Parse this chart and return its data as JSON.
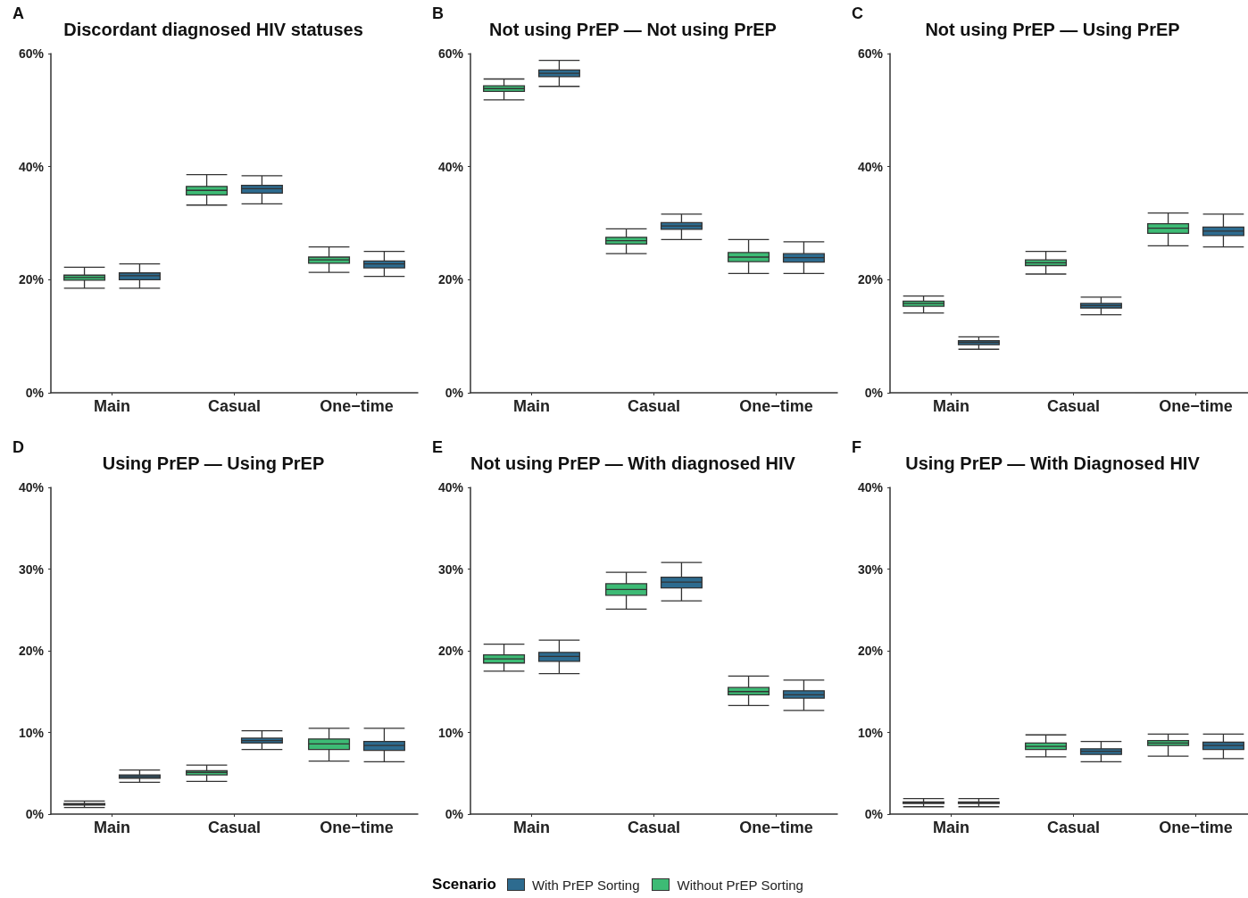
{
  "chart_data": [
    {
      "type": "box",
      "title": "Discordant diagnosed HIV statuses",
      "annotations": [
        "A"
      ],
      "categories": [
        "Main",
        "Casual",
        "One−time"
      ],
      "ylim": [
        0,
        60
      ],
      "yticks": [
        {
          "value": 0,
          "label": "0%"
        },
        {
          "value": 20,
          "label": "20%"
        },
        {
          "value": 40,
          "label": "40%"
        },
        {
          "value": 60,
          "label": "60%"
        }
      ],
      "grid": false,
      "legend": "bottom",
      "legend_title": "Scenario",
      "series": [
        {
          "name": "Without PrEP Sorting",
          "color": "#3dbb75",
          "boxes": [
            {
              "low": 18.5,
              "q1": 19.9,
              "median": 20.4,
              "q3": 20.8,
              "high": 22.2
            },
            {
              "low": 33.2,
              "q1": 35.0,
              "median": 35.8,
              "q3": 36.5,
              "high": 38.6
            },
            {
              "low": 21.3,
              "q1": 22.9,
              "median": 23.5,
              "q3": 24.0,
              "high": 25.8
            }
          ]
        },
        {
          "name": "With PrEP Sorting",
          "color": "#2d6b8f",
          "boxes": [
            {
              "low": 18.5,
              "q1": 20.0,
              "median": 20.7,
              "q3": 21.2,
              "high": 22.8
            },
            {
              "low": 33.4,
              "q1": 35.3,
              "median": 36.1,
              "q3": 36.7,
              "high": 38.4
            },
            {
              "low": 20.6,
              "q1": 22.1,
              "median": 22.8,
              "q3": 23.3,
              "high": 25.0
            }
          ]
        }
      ]
    },
    {
      "type": "box",
      "title": "Not using PrEP — Not using PrEP",
      "annotations": [
        "B"
      ],
      "categories": [
        "Main",
        "Casual",
        "One−time"
      ],
      "ylim": [
        0,
        60
      ],
      "yticks": [
        {
          "value": 0,
          "label": "0%"
        },
        {
          "value": 20,
          "label": "20%"
        },
        {
          "value": 40,
          "label": "40%"
        },
        {
          "value": 60,
          "label": "60%"
        }
      ],
      "grid": false,
      "series": [
        {
          "color": "#3dbb75",
          "boxes": [
            {
              "low": 51.8,
              "q1": 53.3,
              "median": 53.8,
              "q3": 54.3,
              "high": 55.5
            },
            {
              "low": 24.6,
              "q1": 26.3,
              "median": 26.9,
              "q3": 27.5,
              "high": 29.0
            },
            {
              "low": 21.1,
              "q1": 23.2,
              "median": 24.0,
              "q3": 24.8,
              "high": 27.1
            }
          ]
        },
        {
          "color": "#2d6b8f",
          "boxes": [
            {
              "low": 54.2,
              "q1": 55.9,
              "median": 56.5,
              "q3": 57.1,
              "high": 58.8
            },
            {
              "low": 27.1,
              "q1": 28.9,
              "median": 29.5,
              "q3": 30.1,
              "high": 31.6
            },
            {
              "low": 21.1,
              "q1": 23.1,
              "median": 23.9,
              "q3": 24.6,
              "high": 26.7
            }
          ]
        }
      ]
    },
    {
      "type": "box",
      "title": "Not using PrEP — Using PrEP",
      "annotations": [
        "C"
      ],
      "categories": [
        "Main",
        "Casual",
        "One−time"
      ],
      "ylim": [
        0,
        60
      ],
      "yticks": [
        {
          "value": 0,
          "label": "0%"
        },
        {
          "value": 20,
          "label": "20%"
        },
        {
          "value": 40,
          "label": "40%"
        },
        {
          "value": 60,
          "label": "60%"
        }
      ],
      "grid": false,
      "series": [
        {
          "color": "#3dbb75",
          "boxes": [
            {
              "low": 14.1,
              "q1": 15.3,
              "median": 15.8,
              "q3": 16.2,
              "high": 17.1
            },
            {
              "low": 21.0,
              "q1": 22.5,
              "median": 23.0,
              "q3": 23.5,
              "high": 25.0
            },
            {
              "low": 26.0,
              "q1": 28.2,
              "median": 29.1,
              "q3": 29.9,
              "high": 31.8
            }
          ]
        },
        {
          "color": "#2d6b8f",
          "boxes": [
            {
              "low": 7.7,
              "q1": 8.5,
              "median": 8.9,
              "q3": 9.2,
              "high": 9.9
            },
            {
              "low": 13.8,
              "q1": 15.0,
              "median": 15.4,
              "q3": 15.8,
              "high": 16.9
            },
            {
              "low": 25.8,
              "q1": 27.8,
              "median": 28.6,
              "q3": 29.3,
              "high": 31.6
            }
          ]
        }
      ]
    },
    {
      "type": "box",
      "title": "Using PrEP — Using PrEP",
      "annotations": [
        "D"
      ],
      "categories": [
        "Main",
        "Casual",
        "One−time"
      ],
      "ylim": [
        0,
        40
      ],
      "yticks": [
        {
          "value": 0,
          "label": "0%"
        },
        {
          "value": 10,
          "label": "10%"
        },
        {
          "value": 20,
          "label": "20%"
        },
        {
          "value": 30,
          "label": "30%"
        },
        {
          "value": 40,
          "label": "40%"
        }
      ],
      "grid": false,
      "series": [
        {
          "color": "#3dbb75",
          "boxes": [
            {
              "low": 0.8,
              "q1": 1.1,
              "median": 1.2,
              "q3": 1.3,
              "high": 1.6
            },
            {
              "low": 4.0,
              "q1": 4.8,
              "median": 5.1,
              "q3": 5.3,
              "high": 6.0
            },
            {
              "low": 6.5,
              "q1": 7.9,
              "median": 8.6,
              "q3": 9.2,
              "high": 10.5
            }
          ]
        },
        {
          "color": "#2d6b8f",
          "boxes": [
            {
              "low": 3.9,
              "q1": 4.4,
              "median": 4.6,
              "q3": 4.8,
              "high": 5.4
            },
            {
              "low": 7.9,
              "q1": 8.7,
              "median": 9.0,
              "q3": 9.3,
              "high": 10.2
            },
            {
              "low": 6.4,
              "q1": 7.8,
              "median": 8.4,
              "q3": 8.9,
              "high": 10.5
            }
          ]
        }
      ]
    },
    {
      "type": "box",
      "title": "Not using PrEP — With diagnosed HIV",
      "annotations": [
        "E"
      ],
      "categories": [
        "Main",
        "Casual",
        "One−time"
      ],
      "ylim": [
        0,
        40
      ],
      "yticks": [
        {
          "value": 0,
          "label": "0%"
        },
        {
          "value": 10,
          "label": "10%"
        },
        {
          "value": 20,
          "label": "20%"
        },
        {
          "value": 30,
          "label": "30%"
        },
        {
          "value": 40,
          "label": "40%"
        }
      ],
      "grid": false,
      "series": [
        {
          "color": "#3dbb75",
          "boxes": [
            {
              "low": 17.5,
              "q1": 18.5,
              "median": 19.0,
              "q3": 19.5,
              "high": 20.8
            },
            {
              "low": 25.1,
              "q1": 26.8,
              "median": 27.5,
              "q3": 28.2,
              "high": 29.6
            },
            {
              "low": 13.3,
              "q1": 14.6,
              "median": 15.0,
              "q3": 15.5,
              "high": 16.9
            }
          ]
        },
        {
          "color": "#2d6b8f",
          "boxes": [
            {
              "low": 17.2,
              "q1": 18.7,
              "median": 19.3,
              "q3": 19.8,
              "high": 21.3
            },
            {
              "low": 26.1,
              "q1": 27.7,
              "median": 28.4,
              "q3": 29.0,
              "high": 30.8
            },
            {
              "low": 12.7,
              "q1": 14.2,
              "median": 14.6,
              "q3": 15.1,
              "high": 16.4
            }
          ]
        }
      ]
    },
    {
      "type": "box",
      "title": "Using PrEP — With Diagnosed HIV",
      "annotations": [
        "F"
      ],
      "categories": [
        "Main",
        "Casual",
        "One−time"
      ],
      "ylim": [
        0,
        40
      ],
      "yticks": [
        {
          "value": 0,
          "label": "0%"
        },
        {
          "value": 10,
          "label": "10%"
        },
        {
          "value": 20,
          "label": "20%"
        },
        {
          "value": 30,
          "label": "30%"
        },
        {
          "value": 40,
          "label": "40%"
        }
      ],
      "grid": false,
      "series": [
        {
          "color": "#3dbb75",
          "boxes": [
            {
              "low": 0.9,
              "q1": 1.3,
              "median": 1.4,
              "q3": 1.5,
              "high": 1.9
            },
            {
              "low": 7.0,
              "q1": 7.9,
              "median": 8.3,
              "q3": 8.7,
              "high": 9.7
            },
            {
              "low": 7.1,
              "q1": 8.4,
              "median": 8.7,
              "q3": 9.0,
              "high": 9.8
            }
          ]
        },
        {
          "color": "#2d6b8f",
          "boxes": [
            {
              "low": 0.9,
              "q1": 1.3,
              "median": 1.4,
              "q3": 1.5,
              "high": 1.9
            },
            {
              "low": 6.4,
              "q1": 7.3,
              "median": 7.7,
              "q3": 8.0,
              "high": 8.9
            },
            {
              "low": 6.8,
              "q1": 7.9,
              "median": 8.4,
              "q3": 8.8,
              "high": 9.8
            }
          ]
        }
      ]
    }
  ]
}
